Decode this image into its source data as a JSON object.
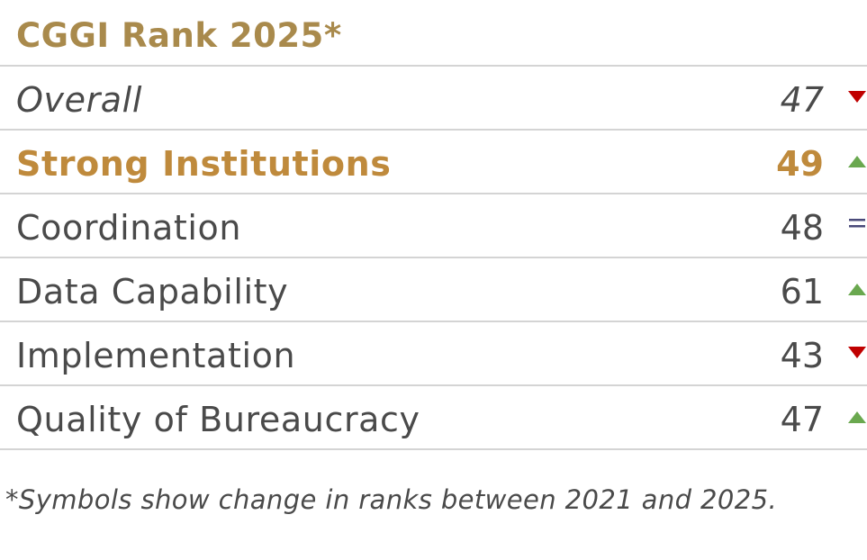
{
  "title": "CGGI Rank 2025",
  "title_mark": "*",
  "rows": [
    {
      "label": "Overall",
      "rank": "47",
      "change": "down"
    },
    {
      "label": "Strong Institutions",
      "rank": "49",
      "change": "up"
    },
    {
      "label": "Coordination",
      "rank": "48",
      "change": "same"
    },
    {
      "label": "Data Capability",
      "rank": "61",
      "change": "up"
    },
    {
      "label": "Implementation",
      "rank": "43",
      "change": "down"
    },
    {
      "label": "Quality of Bureaucracy",
      "rank": "47",
      "change": "up"
    }
  ],
  "colors": {
    "title": "#a98a4c",
    "highlight": "#bf8a3c",
    "up": "#6aa84f",
    "down": "#c00000",
    "same": "#4a4a7a"
  },
  "icons": {
    "up": "triangle-up-icon",
    "down": "triangle-down-icon",
    "same": "equals-icon"
  },
  "footnote": "*Symbols show change in ranks between 2021 and 2025."
}
